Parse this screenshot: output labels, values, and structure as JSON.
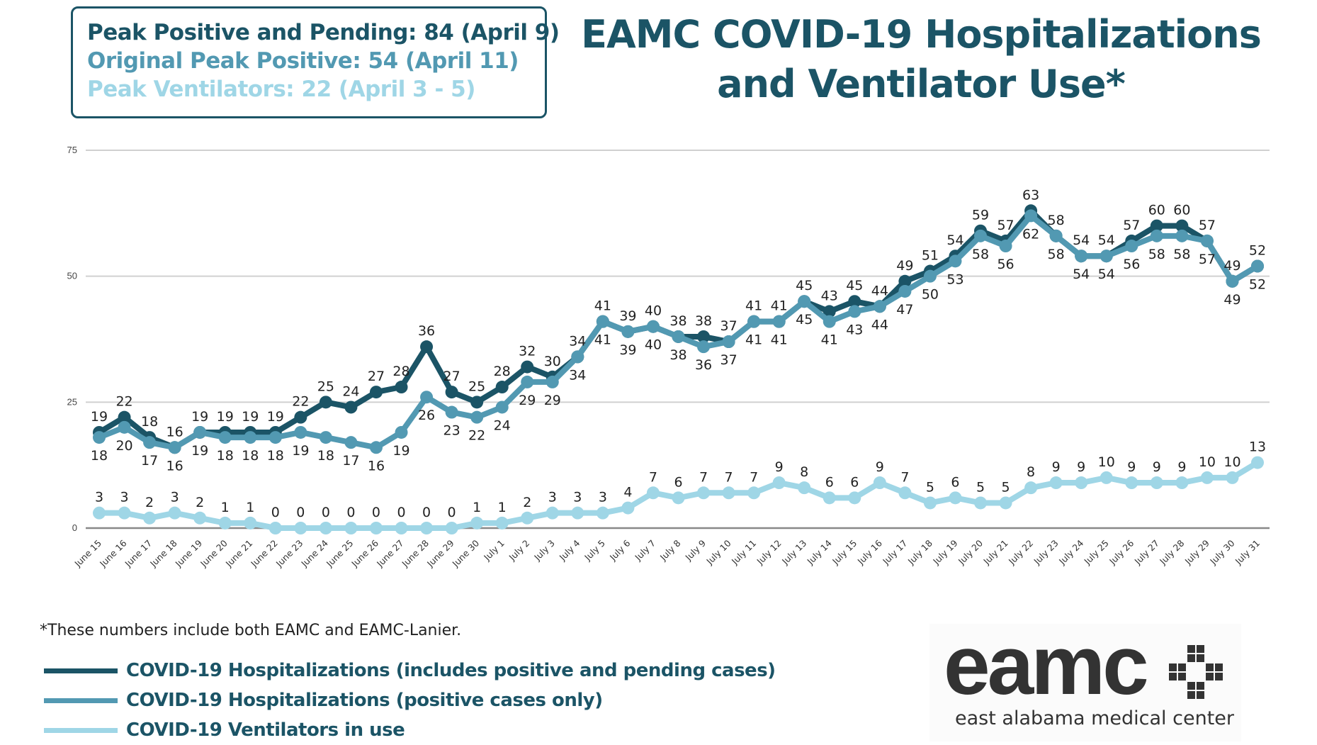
{
  "peaks": [
    {
      "text": "Peak Positive and Pending: 84 (April 9)",
      "color": "#1b5466"
    },
    {
      "text": "Original Peak Positive: 54 (April 11)",
      "color": "#5299b2"
    },
    {
      "text": "Peak Ventilators: 22 (April 3 - 5)",
      "color": "#9fd6e6"
    }
  ],
  "title_line1": "EAMC COVID-19 Hospitalizations",
  "title_line2": "and Ventilator Use*",
  "footnote": "*These numbers include both EAMC and EAMC-Lanier.",
  "logo": {
    "word": "eamc",
    "subtitle": "east alabama medical center",
    "icon": "medical-cross-icon"
  },
  "chart_data": {
    "type": "line",
    "title": "EAMC COVID-19 Hospitalizations and Ventilator Use*",
    "xlabel": "",
    "ylabel": "",
    "ylim": [
      0,
      75
    ],
    "yticks": [
      0,
      25,
      50,
      75
    ],
    "grid": true,
    "legend_position": "bottom-left",
    "categories": [
      "June 15",
      "June 16",
      "June 17",
      "June 18",
      "June 19",
      "June 20",
      "June 21",
      "June 22",
      "June 23",
      "June 24",
      "June 25",
      "June 26",
      "June 27",
      "June 28",
      "June 29",
      "June 30",
      "July 1",
      "July 2",
      "July 3",
      "July 4",
      "July 5",
      "July 6",
      "July 7",
      "July 8",
      "July 9",
      "July 10",
      "July 11",
      "July 12",
      "July 13",
      "July 14",
      "July 15",
      "July 16",
      "July 17",
      "July 18",
      "July 19",
      "July 20",
      "July 21",
      "July 22",
      "July 23",
      "July 24",
      "July 25",
      "July 26",
      "July 27",
      "July 28",
      "July 29",
      "July 30",
      "July 31"
    ],
    "series": [
      {
        "name": "COVID-19 Hospitalizations (includes positive and pending cases)",
        "color": "#1b5466",
        "label_pos": "above",
        "values": [
          19,
          22,
          18,
          16,
          19,
          19,
          19,
          19,
          22,
          25,
          24,
          27,
          28,
          36,
          27,
          25,
          28,
          32,
          30,
          34,
          41,
          39,
          40,
          38,
          38,
          37,
          41,
          41,
          45,
          43,
          45,
          44,
          49,
          51,
          54,
          59,
          57,
          63,
          58,
          54,
          54,
          57,
          60,
          60,
          57,
          49,
          52
        ]
      },
      {
        "name": "COVID-19 Hospitalizations (positive cases only)",
        "color": "#5299b2",
        "label_pos": "below",
        "values": [
          18,
          20,
          17,
          16,
          19,
          18,
          18,
          18,
          19,
          18,
          17,
          16,
          19,
          26,
          23,
          22,
          24,
          29,
          29,
          34,
          41,
          39,
          40,
          38,
          36,
          37,
          41,
          41,
          45,
          41,
          43,
          44,
          47,
          50,
          53,
          58,
          56,
          62,
          58,
          54,
          54,
          56,
          58,
          58,
          57,
          49,
          52
        ]
      },
      {
        "name": "COVID-19 Ventilators in use",
        "color": "#9fd6e6",
        "label_pos": "above",
        "values": [
          3,
          3,
          2,
          3,
          2,
          1,
          1,
          0,
          0,
          0,
          0,
          0,
          0,
          0,
          0,
          1,
          1,
          2,
          3,
          3,
          3,
          4,
          7,
          6,
          7,
          7,
          7,
          9,
          8,
          6,
          6,
          9,
          7,
          5,
          6,
          5,
          5,
          8,
          9,
          9,
          10,
          9,
          9,
          9,
          10,
          10,
          13
        ]
      }
    ]
  }
}
